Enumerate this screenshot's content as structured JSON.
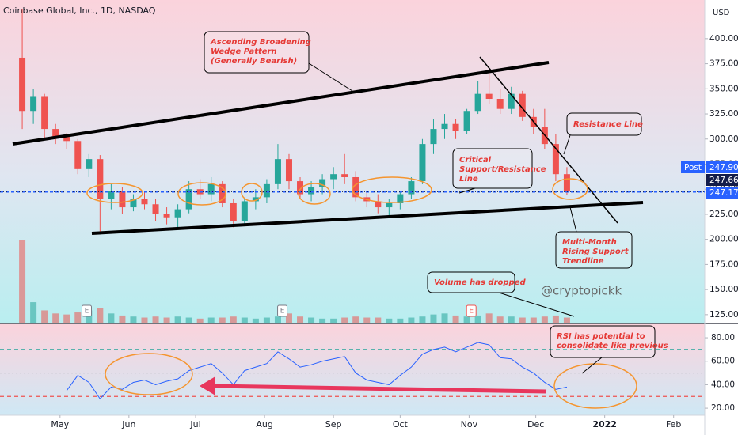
{
  "chart_data": {
    "type": "candlestick",
    "title": "Coinbase Global, Inc., 1D, NASDAQ",
    "currency": "USD",
    "xlim": [
      -10,
      307
    ],
    "xticks": [
      {
        "value": 17,
        "label": "May"
      },
      {
        "value": 48,
        "label": "Jun"
      },
      {
        "value": 78,
        "label": "Jul"
      },
      {
        "value": 109,
        "label": "Aug"
      },
      {
        "value": 140,
        "label": "Sep"
      },
      {
        "value": 170,
        "label": "Oct"
      },
      {
        "value": 201,
        "label": "Nov"
      },
      {
        "value": 231,
        "label": "Dec"
      },
      {
        "value": 262,
        "label": "2022"
      },
      {
        "value": 293,
        "label": "Feb"
      }
    ],
    "ylim": [
      117,
      438.5
    ],
    "yticks": [
      {
        "value": 125,
        "label": "125.00"
      },
      {
        "value": 150,
        "label": "150.00"
      },
      {
        "value": 175,
        "label": "175.00"
      },
      {
        "value": 200,
        "label": "200.00"
      },
      {
        "value": 225,
        "label": "225.00"
      },
      {
        "value": 250,
        "label": "250.00"
      },
      {
        "value": 275,
        "label": "275.00"
      },
      {
        "value": 300,
        "label": "300.00"
      },
      {
        "value": 325,
        "label": "325.00"
      },
      {
        "value": 350,
        "label": "350.00"
      },
      {
        "value": 375,
        "label": "375.00"
      },
      {
        "value": 400,
        "label": "400.00"
      }
    ],
    "up_color": "#26a69a",
    "down_color": "#ef5350",
    "x": [
      0,
      5,
      10,
      15,
      20,
      25,
      30,
      35,
      40,
      45,
      50,
      55,
      60,
      65,
      70,
      75,
      80,
      85,
      90,
      95,
      100,
      105,
      110,
      115,
      120,
      125,
      130,
      135,
      140,
      145,
      150,
      155,
      160,
      165,
      170,
      175,
      180,
      185,
      190,
      195,
      200,
      205,
      210,
      215,
      220,
      225,
      230,
      235,
      240,
      245
    ],
    "open": [
      381,
      328,
      342,
      310,
      302,
      298,
      270,
      280,
      240,
      248,
      232,
      240,
      235,
      225,
      222,
      230,
      250,
      245,
      255,
      236,
      218,
      238,
      242,
      255,
      280,
      258,
      245,
      252,
      260,
      265,
      262,
      242,
      238,
      232,
      236,
      245,
      258,
      295,
      310,
      315,
      308,
      328,
      345,
      340,
      330,
      345,
      322,
      312,
      295,
      265
    ],
    "high": [
      429,
      350,
      345,
      315,
      306,
      300,
      285,
      284,
      255,
      252,
      245,
      248,
      240,
      232,
      235,
      258,
      260,
      262,
      258,
      240,
      240,
      250,
      260,
      295,
      285,
      262,
      258,
      265,
      272,
      285,
      268,
      248,
      245,
      240,
      248,
      262,
      300,
      320,
      325,
      320,
      330,
      358,
      370,
      350,
      352,
      348,
      330,
      330,
      305,
      272
    ],
    "low": [
      310,
      315,
      300,
      295,
      290,
      265,
      262,
      208,
      230,
      225,
      228,
      230,
      218,
      215,
      212,
      226,
      240,
      238,
      232,
      212,
      215,
      230,
      236,
      250,
      250,
      240,
      238,
      245,
      250,
      255,
      238,
      232,
      226,
      224,
      230,
      240,
      255,
      285,
      300,
      300,
      305,
      325,
      335,
      325,
      325,
      318,
      305,
      290,
      258,
      244
    ],
    "close": [
      328,
      342,
      310,
      302,
      298,
      270,
      280,
      240,
      248,
      232,
      240,
      235,
      225,
      222,
      230,
      250,
      245,
      255,
      236,
      218,
      238,
      242,
      255,
      280,
      258,
      245,
      252,
      260,
      265,
      262,
      242,
      238,
      232,
      236,
      245,
      258,
      295,
      310,
      315,
      308,
      328,
      345,
      340,
      330,
      345,
      322,
      312,
      295,
      265,
      247.66
    ],
    "volume": [
      81,
      20,
      12,
      9,
      8,
      10,
      12,
      14,
      9,
      7,
      6,
      5,
      6,
      5,
      6,
      5,
      4,
      5,
      5,
      6,
      5,
      4,
      5,
      6,
      9,
      6,
      5,
      4,
      4,
      5,
      6,
      5,
      5,
      4,
      4,
      5,
      6,
      8,
      9,
      7,
      6,
      7,
      9,
      6,
      6,
      5,
      5,
      6,
      7,
      5
    ],
    "last_price": {
      "value": 247.17,
      "label": "247.17",
      "color": "#2962ff"
    },
    "price_labels": [
      {
        "name": "Post",
        "value": 247.9,
        "label": "247.90",
        "color": "#2962ff"
      },
      {
        "value": 247.66,
        "label": "247.66",
        "color": "#131c4a"
      }
    ],
    "events": [
      {
        "x": 29,
        "label": "E",
        "color": "#787b86"
      },
      {
        "x": 117,
        "label": "E",
        "color": "#787b86"
      },
      {
        "x": 202,
        "label": "E",
        "color": "#ef5350"
      }
    ],
    "rsi": {
      "color": "#2962ff",
      "ylim": [
        14,
        91.5
      ],
      "yticks": [
        {
          "value": 20,
          "label": "20.00"
        },
        {
          "value": 40,
          "label": "40.00"
        },
        {
          "value": 60,
          "label": "60.00"
        },
        {
          "value": 80,
          "label": "80.00"
        }
      ],
      "upper": 70,
      "middle": 50,
      "lower": 30,
      "x": [
        20,
        25,
        30,
        35,
        40,
        45,
        50,
        55,
        60,
        65,
        70,
        75,
        80,
        85,
        90,
        95,
        100,
        105,
        110,
        115,
        120,
        125,
        130,
        135,
        140,
        145,
        150,
        155,
        160,
        165,
        170,
        175,
        180,
        185,
        190,
        195,
        200,
        205,
        210,
        215,
        220,
        225,
        230,
        235,
        240,
        245
      ],
      "values": [
        35,
        48,
        42,
        28,
        38,
        36,
        42,
        44,
        40,
        43,
        45,
        52,
        55,
        58,
        50,
        40,
        52,
        55,
        58,
        68,
        62,
        55,
        57,
        60,
        62,
        64,
        50,
        44,
        42,
        40,
        48,
        55,
        66,
        70,
        72,
        68,
        72,
        76,
        74,
        63,
        62,
        55,
        50,
        42,
        36,
        38
      ]
    },
    "watermark": "@cryptopickk",
    "annotations": [
      {
        "lines": [
          "Ascending Broadening",
          "Wedge Pattern",
          "(Generally Bearish)"
        ]
      },
      {
        "lines": [
          "Resistance Line"
        ]
      },
      {
        "lines": [
          "Critical",
          "Support/Resistance",
          "Line"
        ]
      },
      {
        "lines": [
          "Multi-Month",
          "Rising Support",
          "Trendline"
        ]
      },
      {
        "lines": [
          "Volume has dropped"
        ]
      },
      {
        "lines": [
          "RSI has potential to",
          "consolidate like previous"
        ]
      }
    ]
  }
}
